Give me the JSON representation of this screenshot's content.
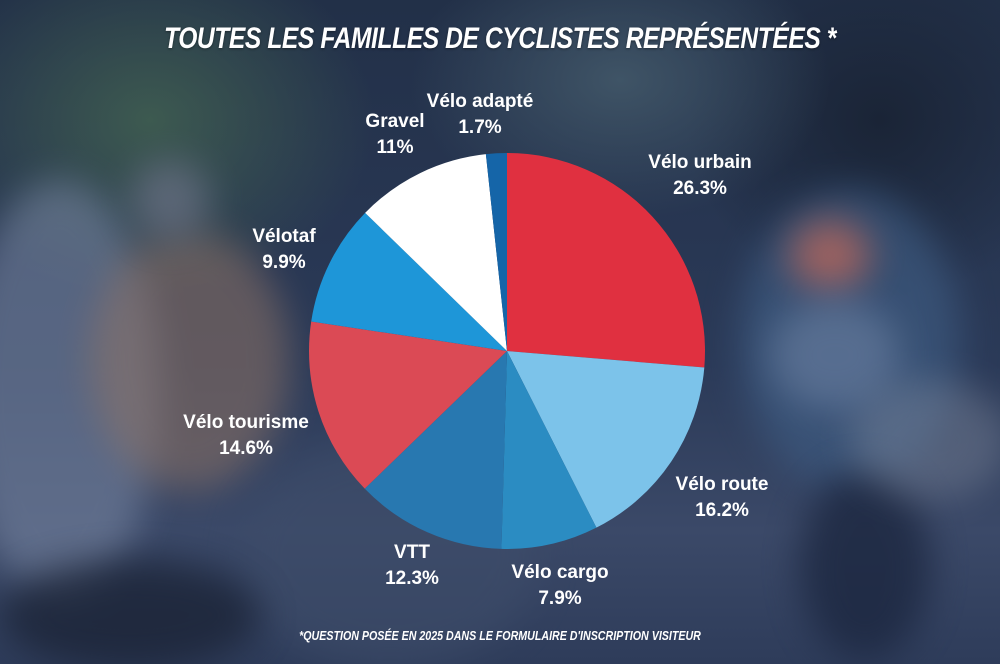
{
  "header": {
    "title": "TOUTES LES FAMILLES DE CYCLISTES REPRÉSENTÉES *"
  },
  "footer": {
    "footnote": "*QUESTION POSÉE EN 2025 DANS LE FORMULAIRE D'INSCRIPTION VISITEUR"
  },
  "chart_data": {
    "type": "pie",
    "title": "TOUTES LES FAMILLES DE CYCLISTES REPRÉSENTÉES *",
    "start": "top",
    "direction": "clockwise",
    "unit": "%",
    "slices": [
      {
        "label": "Vélo urbain",
        "value": 26.3,
        "display": "26.3%",
        "color": "#e03040"
      },
      {
        "label": "Vélo route",
        "value": 16.2,
        "display": "16.2%",
        "color": "#7cc3ea"
      },
      {
        "label": "Vélo cargo",
        "value": 7.9,
        "display": "7.9%",
        "color": "#2b8cc2"
      },
      {
        "label": "VTT",
        "value": 12.3,
        "display": "12.3%",
        "color": "#2878b0"
      },
      {
        "label": "Vélo tourisme",
        "value": 14.6,
        "display": "14.6%",
        "color": "#db4a55"
      },
      {
        "label": "Vélotaf",
        "value": 9.9,
        "display": "9.9%",
        "color": "#1e96d8"
      },
      {
        "label": "Gravel",
        "value": 11,
        "display": "11%",
        "color": "#ffffff"
      },
      {
        "label": "Vélo adapté",
        "value": 1.7,
        "display": "1.7%",
        "color": "#1565a8"
      }
    ],
    "legend": "none",
    "data_labels": "outside"
  }
}
